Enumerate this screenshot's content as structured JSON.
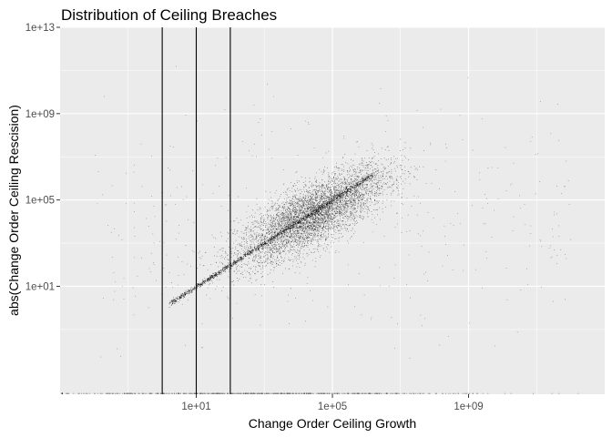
{
  "chart_data": {
    "type": "scatter",
    "title": "Distribution of Ceiling Breaches",
    "xlabel": "Change Order Ceiling Growth",
    "ylabel": "abs(Change Order Ceiling Rescision)",
    "x_scale": "log10",
    "y_scale": "log10",
    "xlim": [
      0.001,
      10000000000000.0
    ],
    "ylim": [
      0.0001,
      10000000000000.0
    ],
    "x_ticks": [
      {
        "value": 10,
        "label": "1e+01"
      },
      {
        "value": 100000,
        "label": "1e+05"
      },
      {
        "value": 1000000000,
        "label": "1e+09"
      }
    ],
    "y_ticks": [
      {
        "value": 10,
        "label": "1e+01"
      },
      {
        "value": 100000,
        "label": "1e+05"
      },
      {
        "value": 1000000000,
        "label": "1e+09"
      },
      {
        "value": 10000000000000,
        "label": "1e+13"
      }
    ],
    "vertical_lines": [
      1,
      10,
      100
    ],
    "point_color": "#000000",
    "panel_background": "#ebebeb",
    "grid_color": "#ffffff",
    "grid": true,
    "legend": "none"
  }
}
